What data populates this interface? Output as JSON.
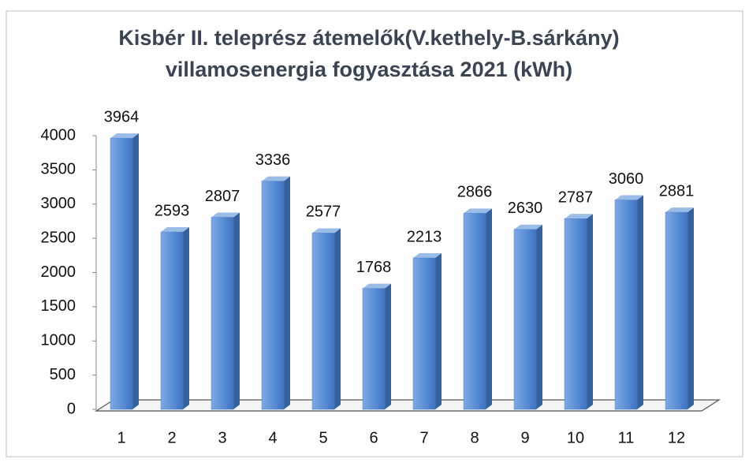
{
  "chart_data": {
    "type": "bar",
    "title": [
      "Kisbér II. teleprész átemelők(V.kethely-B.sárkány)",
      "villamosenergia fogyasztása 2021 (kWh)"
    ],
    "categories": [
      "1",
      "2",
      "3",
      "4",
      "5",
      "6",
      "7",
      "8",
      "9",
      "10",
      "11",
      "12"
    ],
    "values": [
      3964,
      2593,
      2807,
      3336,
      2577,
      1768,
      2213,
      2866,
      2630,
      2787,
      3060,
      2881
    ],
    "color": "#4f86cf",
    "ylim": [
      0,
      4000
    ],
    "yticks": [
      0,
      500,
      1000,
      1500,
      2000,
      2500,
      3000,
      3500,
      4000
    ],
    "grid": false
  }
}
